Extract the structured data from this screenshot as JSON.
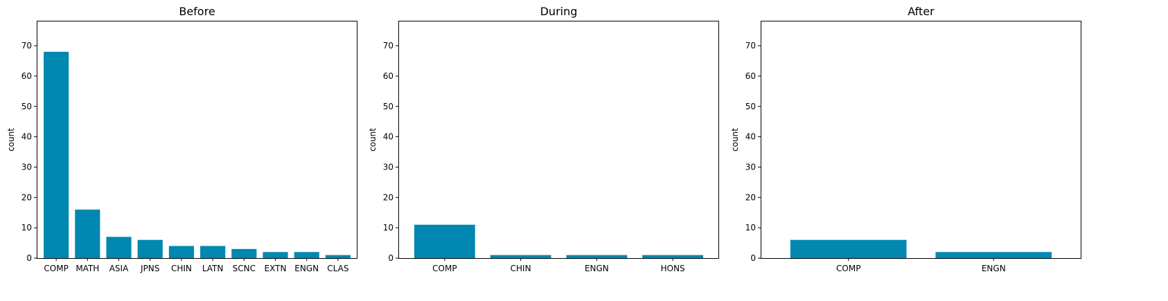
{
  "chart_data": [
    {
      "type": "bar",
      "title": "Before",
      "ylabel": "count",
      "ylim": [
        0,
        78
      ],
      "yticks": [
        0,
        10,
        20,
        30,
        40,
        50,
        60,
        70
      ],
      "categories": [
        "COMP",
        "MATH",
        "ASIA",
        "JPNS",
        "CHIN",
        "LATN",
        "SCNC",
        "EXTN",
        "ENGN",
        "CLAS"
      ],
      "values": [
        68,
        16,
        7,
        6,
        4,
        4,
        3,
        2,
        2,
        1
      ],
      "bar_color": "#0088b0"
    },
    {
      "type": "bar",
      "title": "During",
      "ylabel": "count",
      "ylim": [
        0,
        78
      ],
      "yticks": [
        0,
        10,
        20,
        30,
        40,
        50,
        60,
        70
      ],
      "categories": [
        "COMP",
        "CHIN",
        "ENGN",
        "HONS"
      ],
      "values": [
        11,
        1,
        1,
        1
      ],
      "bar_color": "#0088b0"
    },
    {
      "type": "bar",
      "title": "After",
      "ylabel": "count",
      "ylim": [
        0,
        78
      ],
      "yticks": [
        0,
        10,
        20,
        30,
        40,
        50,
        60,
        70
      ],
      "categories": [
        "COMP",
        "ENGN"
      ],
      "values": [
        6,
        2
      ],
      "bar_color": "#0088b0"
    }
  ]
}
